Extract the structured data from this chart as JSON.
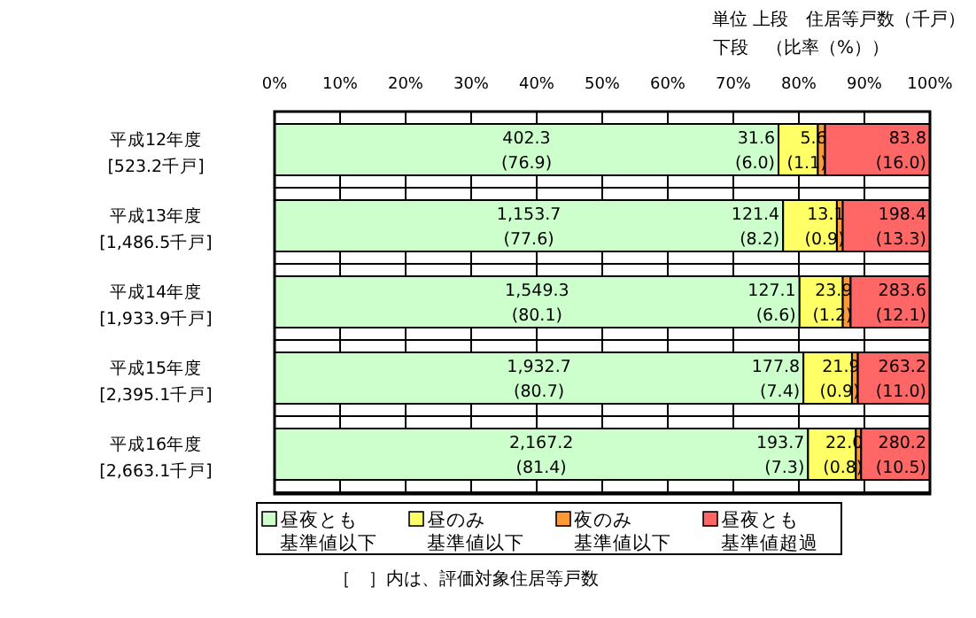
{
  "chart_data": {
    "type": "bar",
    "orientation": "horizontal",
    "stacked": true,
    "annotations": [
      "単位 上段　住居等戸数（千戸）",
      "下段　（比率（%））",
      "［　］内は、評価対象住居等戸数"
    ],
    "categories": [
      "平成12年度\n[523.2千戸]",
      "平成13年度\n[1,486.5千戸]",
      "平成14年度\n[1,933.9千戸]",
      "平成15年度\n[2,395.1千戸]",
      "平成16年度\n[2,663.1千戸]"
    ],
    "series": [
      {
        "name": "昼夜とも基準値以下",
        "color": "#ccffcc",
        "values": [
          76.9,
          77.6,
          80.1,
          80.7,
          81.4
        ],
        "value_labels": [
          "402.3\n(76.9)",
          "1,153.7\n(77.6)",
          "1,549.3\n(80.1)",
          "1,932.7\n(80.7)",
          "2,167.2\n(81.4)"
        ]
      },
      {
        "name": "昼のみ基準値以下",
        "color": "#ffff66",
        "values": [
          6.0,
          8.2,
          6.6,
          7.4,
          7.3
        ],
        "value_labels": [
          "31.6\n(6.0)",
          "121.4\n(8.2)",
          "127.1\n(6.6)",
          "177.8\n(7.4)",
          "193.7\n(7.3)"
        ]
      },
      {
        "name": "夜のみ基準値以下",
        "color": "#ff9933",
        "values": [
          1.1,
          0.9,
          1.2,
          0.9,
          0.8
        ],
        "value_labels": [
          "5.6\n(1.1)",
          "13.1\n(0.9)",
          "23.9\n(1.2)",
          "21.9\n(0.9)",
          "22.0\n(0.8)"
        ]
      },
      {
        "name": "昼夜とも基準値超過",
        "color": "#ff6666",
        "values": [
          16.0,
          13.3,
          12.1,
          11.0,
          10.5
        ],
        "value_labels": [
          "83.8\n(16.0)",
          "198.4\n(13.3)",
          "283.6\n(12.1)",
          "263.2\n(11.0)",
          "280.2\n(10.5)"
        ]
      }
    ],
    "xlim": [
      0,
      100
    ],
    "xticks": [
      {
        "value": 0,
        "label": "0%"
      },
      {
        "value": 10,
        "label": "10%"
      },
      {
        "value": 20,
        "label": "20%"
      },
      {
        "value": 30,
        "label": "30%"
      },
      {
        "value": 40,
        "label": "40%"
      },
      {
        "value": 50,
        "label": "50%"
      },
      {
        "value": 60,
        "label": "60%"
      },
      {
        "value": 70,
        "label": "70%"
      },
      {
        "value": 80,
        "label": "80%"
      },
      {
        "value": 90,
        "label": "90%"
      },
      {
        "value": 100,
        "label": "100%"
      }
    ],
    "grid": "x",
    "legend": "bottom"
  }
}
